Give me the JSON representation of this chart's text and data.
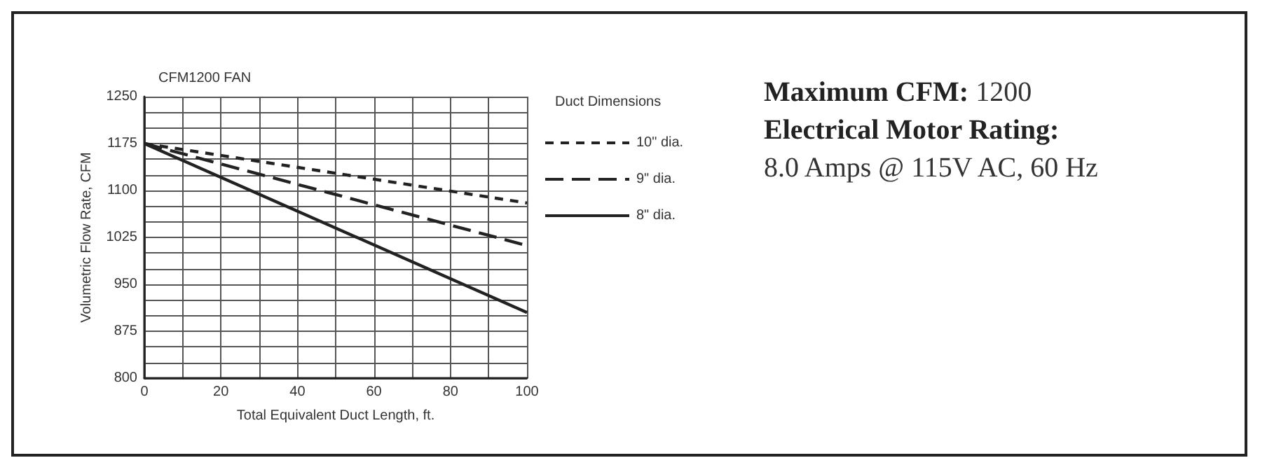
{
  "chart_data": {
    "type": "line",
    "title": "CFM1200 FAN",
    "xlabel": "Total Equivalent Duct Length, ft.",
    "ylabel": "Volumetric Flow Rate, CFM",
    "legend_title": "Duct Dimensions",
    "legend": "right",
    "xlim": [
      0,
      100
    ],
    "ylim": [
      800,
      1250
    ],
    "xticks": [
      0,
      {
        "value": 10,
        "label": null
      },
      20,
      {
        "value": 30,
        "label": null
      },
      40,
      {
        "value": 50,
        "label": null
      },
      60,
      {
        "value": 70,
        "label": null
      },
      80,
      {
        "value": 90,
        "label": null
      },
      100
    ],
    "yticks": [
      800,
      {
        "value": 825,
        "label": null
      },
      {
        "value": 850,
        "label": null
      },
      875,
      {
        "value": 900,
        "label": null
      },
      {
        "value": 925,
        "label": null
      },
      950,
      {
        "value": 975,
        "label": null
      },
      {
        "value": 1000,
        "label": null
      },
      1025,
      {
        "value": 1050,
        "label": null
      },
      {
        "value": 1075,
        "label": null
      },
      1100,
      {
        "value": 1125,
        "label": null
      },
      {
        "value": 1150,
        "label": null
      },
      1175,
      {
        "value": 1200,
        "label": null
      },
      {
        "value": 1225,
        "label": null
      },
      1250
    ],
    "grid": true,
    "marker": "none",
    "x": [
      0,
      100
    ],
    "series": [
      {
        "name": "10\" dia.",
        "color": "#222222",
        "line_style": "dashed",
        "values": [
          1175,
          1080
        ]
      },
      {
        "name": "9\" dia.",
        "color": "#222222",
        "line_style": "dashed",
        "values": [
          1175,
          1012
        ]
      },
      {
        "name": "8\" dia.",
        "color": "#222222",
        "line_style": "solid",
        "values": [
          1175,
          905
        ]
      }
    ],
    "annotations": [
      "Maximum CFM: 1200",
      "Electrical Motor Rating:",
      "8.0 Amps @ 115V AC, 60 Hz"
    ]
  }
}
